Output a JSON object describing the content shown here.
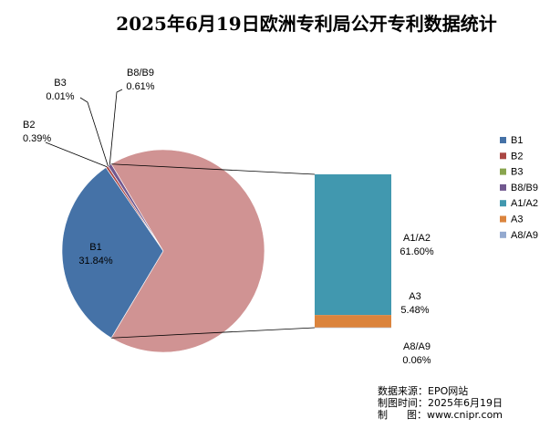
{
  "chart_data": {
    "type": "pie",
    "title": "2025年6月19日欧洲专利局公开专利数据统计",
    "pie_slices": [
      {
        "name": "B1",
        "value": 31.84,
        "label": "31.84%",
        "color": "#4572a7"
      },
      {
        "name": "B2",
        "value": 0.39,
        "label": "0.39%",
        "color": "#aa4643"
      },
      {
        "name": "B3",
        "value": 0.01,
        "label": "0.01%",
        "color": "#89a54e"
      },
      {
        "name": "B8/B9",
        "value": 0.61,
        "label": "0.61%",
        "color": "#71588f"
      },
      {
        "name": "A (other)",
        "value": 67.14,
        "label": "",
        "color": "#d09393"
      }
    ],
    "bar_segments": [
      {
        "name": "A1/A2",
        "value": 61.6,
        "label": "61.60%",
        "color": "#4198af"
      },
      {
        "name": "A3",
        "value": 5.48,
        "label": "5.48%",
        "color": "#db843d"
      },
      {
        "name": "A8/A9",
        "value": 0.06,
        "label": "0.06%",
        "color": "#93a9cf"
      }
    ],
    "legend": {
      "placement": "right",
      "entries": [
        {
          "name": "B1",
          "color": "#4572a7"
        },
        {
          "name": "B2",
          "color": "#aa4643"
        },
        {
          "name": "B3",
          "color": "#89a54e"
        },
        {
          "name": "B8/B9",
          "color": "#71588f"
        },
        {
          "name": "A1/A2",
          "color": "#4198af"
        },
        {
          "name": "A3",
          "color": "#db843d"
        },
        {
          "name": "A8/A9",
          "color": "#93a9cf"
        }
      ]
    }
  },
  "footer": {
    "source": "数据来源：EPO网站",
    "time": "制图时间：2025年6月19日",
    "site": "制      图：www.cnipr.com"
  }
}
